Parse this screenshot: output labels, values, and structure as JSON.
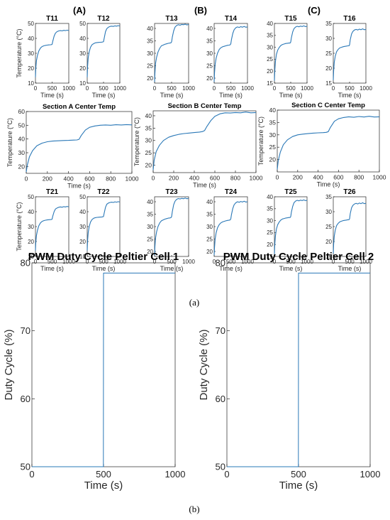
{
  "figure": {
    "group_labels": [
      "(A)",
      "(B)",
      "(C)"
    ],
    "caption_a": "(a)",
    "caption_b": "(b)",
    "series_color": "#2a78b7"
  },
  "chart_data": [
    {
      "id": "T11",
      "type": "line",
      "title": "T11",
      "xlabel": "Time (s)",
      "ylabel": "Temperature (°C)",
      "xlim": [
        0,
        1000
      ],
      "ylim": [
        10,
        50
      ],
      "xticks": [
        0,
        500,
        1000
      ],
      "yticks": [
        10,
        20,
        30,
        40,
        50
      ],
      "x": [
        0,
        10,
        30,
        60,
        100,
        150,
        200,
        250,
        300,
        350,
        400,
        450,
        480,
        500,
        520,
        560,
        600,
        650,
        700,
        750,
        800,
        850,
        900,
        950,
        1000
      ],
      "y": [
        14,
        20,
        25,
        28.5,
        31.5,
        33.5,
        34.5,
        35,
        35.3,
        35.5,
        35.6,
        35.7,
        35.8,
        36,
        38,
        41.5,
        43.5,
        44.5,
        45,
        45.2,
        45,
        45.4,
        45.2,
        45.5,
        45.3
      ]
    },
    {
      "id": "T12",
      "type": "line",
      "title": "T12",
      "xlabel": "Time (s)",
      "ylabel": "",
      "xlim": [
        0,
        1000
      ],
      "ylim": [
        10,
        50
      ],
      "xticks": [
        0,
        500,
        1000
      ],
      "yticks": [
        10,
        20,
        30,
        40,
        50
      ],
      "x": [
        0,
        10,
        30,
        60,
        100,
        150,
        200,
        250,
        300,
        350,
        400,
        450,
        480,
        500,
        520,
        560,
        600,
        650,
        700,
        750,
        800,
        850,
        900,
        950,
        1000
      ],
      "y": [
        14,
        21,
        27,
        31,
        34,
        35.8,
        36.5,
        37,
        37.2,
        37.3,
        37.4,
        37.5,
        37.6,
        37.8,
        40,
        44.5,
        46.5,
        47.5,
        48,
        48.2,
        48,
        48.4,
        48.2,
        48.5,
        48.3
      ]
    },
    {
      "id": "T13",
      "type": "line",
      "title": "T13",
      "xlabel": "Time (s)",
      "ylabel": "",
      "xlim": [
        0,
        1000
      ],
      "ylim": [
        18,
        42
      ],
      "xticks": [
        0,
        500,
        1000
      ],
      "yticks": [
        20,
        25,
        30,
        35,
        40
      ],
      "x": [
        0,
        10,
        30,
        60,
        100,
        150,
        200,
        250,
        300,
        350,
        400,
        450,
        480,
        500,
        520,
        560,
        600,
        650,
        700,
        750,
        800,
        850,
        900,
        950,
        1000
      ],
      "y": [
        18.5,
        22,
        26,
        28.5,
        30.5,
        32,
        33,
        33.3,
        33.6,
        33.8,
        34,
        34.1,
        34.2,
        34.6,
        36.5,
        39,
        40.5,
        41.2,
        41.5,
        41.3,
        41.6,
        41.5,
        41.7,
        41.4,
        41.6
      ]
    },
    {
      "id": "T14",
      "type": "line",
      "title": "T14",
      "xlabel": "Time (s)",
      "ylabel": "",
      "xlim": [
        0,
        1000
      ],
      "ylim": [
        18,
        42
      ],
      "xticks": [
        0,
        500,
        1000
      ],
      "yticks": [
        20,
        25,
        30,
        35,
        40
      ],
      "x": [
        0,
        10,
        30,
        60,
        100,
        150,
        200,
        250,
        300,
        350,
        400,
        450,
        480,
        500,
        520,
        560,
        600,
        650,
        700,
        750,
        800,
        850,
        900,
        950,
        1000
      ],
      "y": [
        18.5,
        22,
        25.5,
        28,
        30,
        31.5,
        32.2,
        32.6,
        32.8,
        33,
        33.2,
        33.3,
        33.4,
        33.8,
        35.5,
        38,
        39.5,
        40.3,
        40.6,
        40.4,
        40.7,
        40.5,
        40.8,
        40.5,
        40.6
      ]
    },
    {
      "id": "T15",
      "type": "line",
      "title": "T15",
      "xlabel": "Time (s)",
      "ylabel": "",
      "xlim": [
        0,
        1000
      ],
      "ylim": [
        15,
        40
      ],
      "xticks": [
        0,
        500,
        1000
      ],
      "yticks": [
        15,
        20,
        25,
        30,
        35,
        40
      ],
      "x": [
        0,
        10,
        30,
        60,
        100,
        150,
        200,
        250,
        300,
        350,
        400,
        450,
        480,
        500,
        520,
        560,
        600,
        650,
        700,
        750,
        800,
        850,
        900,
        950,
        1000
      ],
      "y": [
        16,
        20,
        24,
        27,
        28.8,
        30,
        30.8,
        31.2,
        31.4,
        31.6,
        31.7,
        31.8,
        31.8,
        32.2,
        34,
        36.5,
        37.8,
        38.5,
        38.8,
        38.6,
        38.9,
        38.7,
        39,
        38.7,
        38.8
      ]
    },
    {
      "id": "T16",
      "type": "line",
      "title": "T16",
      "xlabel": "Time (s)",
      "ylabel": "",
      "xlim": [
        0,
        1000
      ],
      "ylim": [
        15,
        35
      ],
      "xticks": [
        0,
        500,
        1000
      ],
      "yticks": [
        15,
        20,
        25,
        30,
        35
      ],
      "x": [
        0,
        10,
        30,
        60,
        100,
        150,
        200,
        250,
        300,
        350,
        400,
        450,
        480,
        500,
        520,
        560,
        600,
        650,
        700,
        750,
        800,
        850,
        900,
        950,
        1000
      ],
      "y": [
        16,
        19,
        22,
        24,
        25.5,
        26.3,
        26.8,
        27,
        27.2,
        27.3,
        27.4,
        27.5,
        27.5,
        27.8,
        29.5,
        31.5,
        32.3,
        32.8,
        33,
        32.8,
        33.1,
        32.9,
        33.2,
        32.9,
        33
      ]
    },
    {
      "id": "SecA",
      "type": "line",
      "title": "Section A Center Temp",
      "xlabel": "Time (s)",
      "ylabel": "Temperature (°C)",
      "xlim": [
        0,
        1000
      ],
      "ylim": [
        15,
        60
      ],
      "xticks": [
        0,
        200,
        400,
        600,
        800,
        1000
      ],
      "yticks": [
        20,
        30,
        40,
        50,
        60
      ],
      "x": [
        0,
        10,
        30,
        60,
        100,
        150,
        200,
        250,
        300,
        350,
        400,
        450,
        480,
        500,
        520,
        560,
        600,
        650,
        700,
        750,
        800,
        850,
        900,
        950,
        1000
      ],
      "y": [
        16,
        21,
        27,
        31.5,
        35,
        37,
        38,
        38.5,
        38.7,
        38.9,
        39,
        39.2,
        39.3,
        39.8,
        42.5,
        46.5,
        48.5,
        49.5,
        50,
        50.2,
        50,
        50.4,
        50.2,
        50.5,
        50.3
      ]
    },
    {
      "id": "SecB",
      "type": "line",
      "title": "Section B Center Temp",
      "xlabel": "Time (s)",
      "ylabel": "Temperature (°C)",
      "xlim": [
        0,
        1000
      ],
      "ylim": [
        17,
        42
      ],
      "xticks": [
        0,
        200,
        400,
        600,
        800,
        1000
      ],
      "yticks": [
        20,
        25,
        30,
        35,
        40
      ],
      "x": [
        0,
        10,
        30,
        60,
        100,
        150,
        200,
        250,
        300,
        350,
        400,
        450,
        480,
        500,
        520,
        560,
        600,
        650,
        700,
        750,
        800,
        850,
        900,
        950,
        1000
      ],
      "y": [
        18,
        22,
        25.5,
        28,
        30,
        31.3,
        32,
        32.5,
        32.8,
        33,
        33.2,
        33.4,
        33.6,
        34,
        35.5,
        38,
        39.8,
        40.8,
        41.2,
        41.1,
        41.3,
        41.2,
        41.5,
        41.2,
        41.3
      ]
    },
    {
      "id": "SecC",
      "type": "line",
      "title": "Section C Center Temp",
      "xlabel": "Time (s)",
      "ylabel": "Temperature (°C)",
      "xlim": [
        0,
        1000
      ],
      "ylim": [
        15,
        40
      ],
      "xticks": [
        0,
        200,
        400,
        600,
        800,
        1000
      ],
      "yticks": [
        20,
        25,
        30,
        35,
        40
      ],
      "x": [
        0,
        10,
        30,
        60,
        100,
        150,
        200,
        250,
        300,
        350,
        400,
        450,
        480,
        500,
        520,
        560,
        600,
        650,
        700,
        750,
        800,
        850,
        900,
        950,
        1000
      ],
      "y": [
        16,
        19.5,
        23,
        26,
        28,
        29.3,
        30,
        30.3,
        30.5,
        30.7,
        30.8,
        30.9,
        31,
        31.3,
        33,
        35.5,
        36.5,
        37,
        37.3,
        37.1,
        37.4,
        37.2,
        37.5,
        37.2,
        37.3
      ]
    },
    {
      "id": "T21",
      "type": "line",
      "title": "T21",
      "xlabel": "Time (s)",
      "ylabel": "Temperature (°C)",
      "xlim": [
        0,
        1000
      ],
      "ylim": [
        10,
        50
      ],
      "xticks": [
        0,
        500,
        1000
      ],
      "yticks": [
        10,
        20,
        30,
        40,
        50
      ],
      "x": [
        0,
        10,
        30,
        60,
        100,
        150,
        200,
        250,
        300,
        350,
        400,
        450,
        480,
        500,
        520,
        560,
        600,
        650,
        700,
        750,
        800,
        850,
        900,
        950,
        1000
      ],
      "y": [
        14,
        19.5,
        24,
        27.5,
        30.5,
        32.5,
        33.5,
        34,
        34.3,
        34.5,
        34.6,
        34.7,
        34.8,
        35,
        37,
        40,
        41.8,
        42.5,
        43,
        43.2,
        43,
        43.4,
        43.2,
        43.5,
        43.3
      ]
    },
    {
      "id": "T22",
      "type": "line",
      "title": "T22",
      "xlabel": "Time (s)",
      "ylabel": "",
      "xlim": [
        0,
        1000
      ],
      "ylim": [
        10,
        50
      ],
      "xticks": [
        0,
        500,
        1000
      ],
      "yticks": [
        10,
        20,
        30,
        40,
        50
      ],
      "x": [
        0,
        10,
        30,
        60,
        100,
        150,
        200,
        250,
        300,
        350,
        400,
        450,
        480,
        500,
        520,
        560,
        600,
        650,
        700,
        750,
        800,
        850,
        900,
        950,
        1000
      ],
      "y": [
        14,
        20.5,
        26,
        30,
        33,
        34.8,
        35.6,
        36,
        36.2,
        36.3,
        36.4,
        36.5,
        36.6,
        36.8,
        39,
        43,
        45,
        45.8,
        46.2,
        46.4,
        46.2,
        46.6,
        46.4,
        46.7,
        46.5
      ]
    },
    {
      "id": "T23",
      "type": "line",
      "title": "T23",
      "xlabel": "Time (s)",
      "ylabel": "",
      "xlim": [
        0,
        1000
      ],
      "ylim": [
        18,
        42
      ],
      "xticks": [
        0,
        500,
        1000
      ],
      "yticks": [
        20,
        25,
        30,
        35,
        40
      ],
      "x": [
        0,
        10,
        30,
        60,
        100,
        150,
        200,
        250,
        300,
        350,
        400,
        450,
        480,
        500,
        520,
        560,
        600,
        650,
        700,
        750,
        800,
        850,
        900,
        950,
        1000
      ],
      "y": [
        18.5,
        22,
        25.5,
        28,
        30,
        31.5,
        32.3,
        32.7,
        33,
        33.2,
        33.4,
        33.5,
        33.6,
        34,
        36,
        38.8,
        40.2,
        41,
        41.3,
        41.1,
        41.4,
        41.2,
        41.5,
        41.2,
        41.4
      ]
    },
    {
      "id": "T24",
      "type": "line",
      "title": "T24",
      "xlabel": "Time (s)",
      "ylabel": "",
      "xlim": [
        0,
        1000
      ],
      "ylim": [
        18,
        42
      ],
      "xticks": [
        0,
        500,
        1000
      ],
      "yticks": [
        20,
        25,
        30,
        35,
        40
      ],
      "x": [
        0,
        10,
        30,
        60,
        100,
        150,
        200,
        250,
        300,
        350,
        400,
        450,
        480,
        500,
        520,
        560,
        600,
        650,
        700,
        750,
        800,
        850,
        900,
        950,
        1000
      ],
      "y": [
        18.5,
        21.5,
        25,
        27.5,
        29.5,
        30.8,
        31.5,
        31.9,
        32.1,
        32.3,
        32.5,
        32.6,
        32.7,
        33.1,
        34.8,
        37.3,
        38.8,
        39.6,
        40,
        39.8,
        40.1,
        39.9,
        40.2,
        39.9,
        40
      ]
    },
    {
      "id": "T25",
      "type": "line",
      "title": "T25",
      "xlabel": "Time (s)",
      "ylabel": "",
      "xlim": [
        0,
        1000
      ],
      "ylim": [
        15,
        40
      ],
      "xticks": [
        0,
        500,
        1000
      ],
      "yticks": [
        15,
        20,
        25,
        30,
        35,
        40
      ],
      "x": [
        0,
        10,
        30,
        60,
        100,
        150,
        200,
        250,
        300,
        350,
        400,
        450,
        480,
        500,
        520,
        560,
        600,
        650,
        700,
        750,
        800,
        850,
        900,
        950,
        1000
      ],
      "y": [
        16,
        20,
        23.5,
        26.5,
        28.3,
        29.5,
        30.3,
        30.7,
        30.9,
        31.1,
        31.2,
        31.3,
        31.3,
        31.7,
        33.5,
        36,
        37.5,
        38.2,
        38.5,
        38.3,
        38.6,
        38.4,
        38.7,
        38.4,
        38.5
      ]
    },
    {
      "id": "T26",
      "type": "line",
      "title": "T26",
      "xlabel": "Time (s)",
      "ylabel": "",
      "xlim": [
        0,
        1000
      ],
      "ylim": [
        15,
        35
      ],
      "xticks": [
        0,
        500,
        1000
      ],
      "yticks": [
        15,
        20,
        25,
        30,
        35
      ],
      "x": [
        0,
        10,
        30,
        60,
        100,
        150,
        200,
        250,
        300,
        350,
        400,
        450,
        480,
        500,
        520,
        560,
        600,
        650,
        700,
        750,
        800,
        850,
        900,
        950,
        1000
      ],
      "y": [
        16,
        19,
        21.8,
        23.8,
        25.3,
        26.1,
        26.6,
        26.8,
        27,
        27.1,
        27.2,
        27.3,
        27.3,
        27.6,
        29.3,
        31.3,
        32.1,
        32.6,
        32.8,
        32.6,
        32.9,
        32.7,
        33,
        32.7,
        32.8
      ]
    },
    {
      "id": "PWM1",
      "type": "line",
      "title": "PWM Duty Cycle Peltier Cell 1",
      "xlabel": "Time (s)",
      "ylabel": "Duty Cycle (%)",
      "xlim": [
        0,
        1000
      ],
      "ylim": [
        50,
        80
      ],
      "xticks": [
        0,
        500,
        1000
      ],
      "yticks": [
        50,
        60,
        70,
        80
      ],
      "x": [
        0,
        499,
        500,
        1000
      ],
      "y": [
        50,
        50,
        78.5,
        78.5
      ]
    },
    {
      "id": "PWM2",
      "type": "line",
      "title": "PWM Duty Cycle Peltier Cell 2",
      "xlabel": "Time (s)",
      "ylabel": "Duty Cycle (%)",
      "xlim": [
        0,
        1000
      ],
      "ylim": [
        50,
        80
      ],
      "xticks": [
        0,
        500,
        1000
      ],
      "yticks": [
        50,
        60,
        70,
        80
      ],
      "x": [
        0,
        499,
        500,
        1000
      ],
      "y": [
        50,
        50,
        78.5,
        78.5
      ]
    }
  ]
}
